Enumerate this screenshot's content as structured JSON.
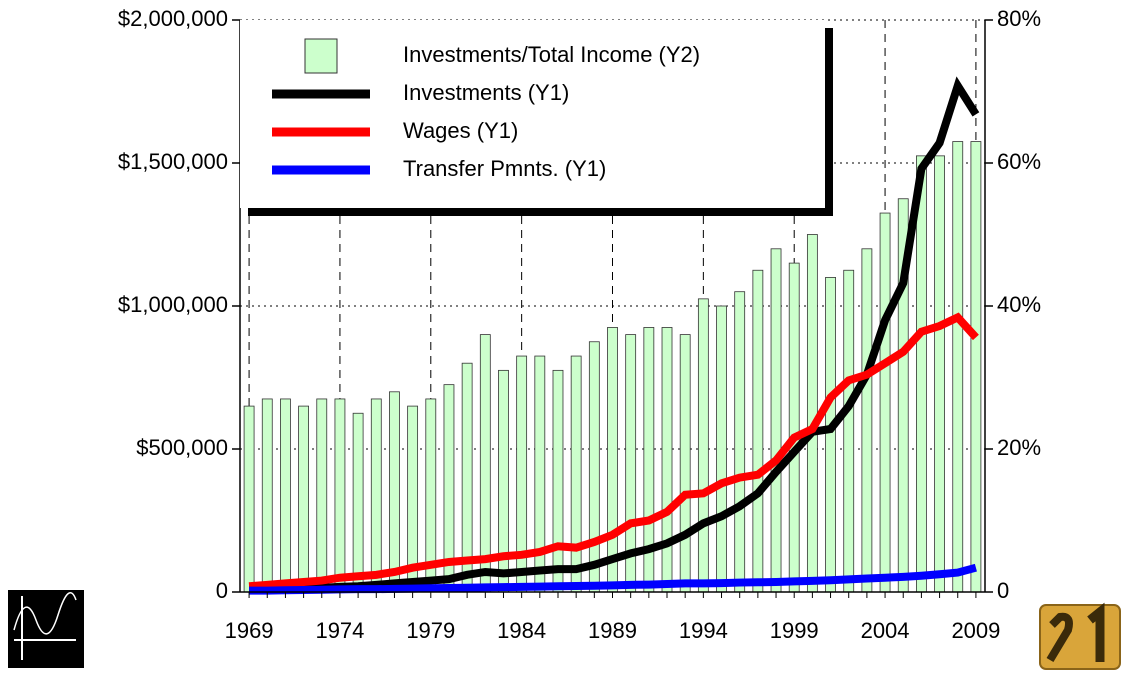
{
  "chart_data": {
    "type": "bar",
    "x": [
      1969,
      1970,
      1971,
      1972,
      1973,
      1974,
      1975,
      1976,
      1977,
      1978,
      1979,
      1980,
      1981,
      1982,
      1983,
      1984,
      1985,
      1986,
      1987,
      1988,
      1989,
      1990,
      1991,
      1992,
      1993,
      1994,
      1995,
      1996,
      1997,
      1998,
      1999,
      2000,
      2001,
      2002,
      2003,
      2004,
      2005,
      2006,
      2007,
      2008,
      2009
    ],
    "series": [
      {
        "name": "Investments/Total Income (Y2)",
        "type": "bar",
        "axis": "y2",
        "color": "#ccffcc",
        "values": [
          26,
          27,
          27,
          26,
          27,
          27,
          25,
          27,
          28,
          26,
          27,
          29,
          32,
          36,
          31,
          33,
          33,
          31,
          33,
          35,
          37,
          36,
          37,
          37,
          36,
          41,
          40,
          42,
          45,
          48,
          46,
          50,
          44,
          45,
          48,
          53,
          55,
          61,
          61,
          63,
          63
        ]
      },
      {
        "name": "Investments (Y1)",
        "type": "line",
        "color": "#000000",
        "values": [
          15000,
          15000,
          15000,
          15000,
          15000,
          18000,
          20000,
          25000,
          30000,
          35000,
          40000,
          45000,
          60000,
          70000,
          65000,
          70000,
          75000,
          80000,
          80000,
          95000,
          115000,
          135000,
          150000,
          170000,
          200000,
          240000,
          265000,
          300000,
          345000,
          420000,
          490000,
          560000,
          570000,
          650000,
          760000,
          950000,
          1080000,
          1480000,
          1570000,
          1770000,
          1670000
        ]
      },
      {
        "name": "Wages (Y1)",
        "type": "line",
        "color": "#ff0000",
        "values": [
          20000,
          25000,
          30000,
          35000,
          40000,
          50000,
          55000,
          60000,
          70000,
          85000,
          95000,
          105000,
          110000,
          115000,
          125000,
          130000,
          140000,
          160000,
          155000,
          175000,
          200000,
          240000,
          250000,
          280000,
          340000,
          345000,
          380000,
          400000,
          410000,
          460000,
          540000,
          570000,
          680000,
          740000,
          760000,
          800000,
          840000,
          910000,
          930000,
          960000,
          890000
        ]
      },
      {
        "name": "Transfer Pmnts. (Y1)",
        "type": "line",
        "color": "#0000ff",
        "values": [
          5000,
          5000,
          6000,
          7000,
          8000,
          9000,
          10000,
          10000,
          11000,
          12000,
          13000,
          14000,
          15000,
          16000,
          17000,
          18000,
          19000,
          20000,
          21000,
          22000,
          23000,
          25000,
          26000,
          28000,
          30000,
          30000,
          31000,
          33000,
          34000,
          35000,
          37000,
          39000,
          41000,
          44000,
          47000,
          50000,
          53000,
          57000,
          62000,
          68000,
          85000
        ]
      }
    ],
    "xlim": [
      1968.5,
      2009.5
    ],
    "xticks": [
      1969,
      1974,
      1979,
      1984,
      1989,
      1994,
      1999,
      2004,
      2009
    ],
    "ylim": [
      0,
      2000000
    ],
    "yticks": [
      0,
      {
        "value": 500000,
        "label": "$500,000"
      },
      {
        "value": 1000000,
        "label": "$1,000,000"
      },
      {
        "value": 1500000,
        "label": "$1,500,000"
      },
      {
        "value": 2000000,
        "label": "$2,000,000"
      }
    ],
    "y2lim": [
      0,
      80
    ],
    "y2ticks": [
      0,
      {
        "value": 20,
        "label": "20%"
      },
      {
        "value": 40,
        "label": "40%"
      },
      {
        "value": 60,
        "label": "60%"
      },
      {
        "value": 80,
        "label": "80%"
      }
    ],
    "grid": true,
    "legend": "top-left"
  }
}
